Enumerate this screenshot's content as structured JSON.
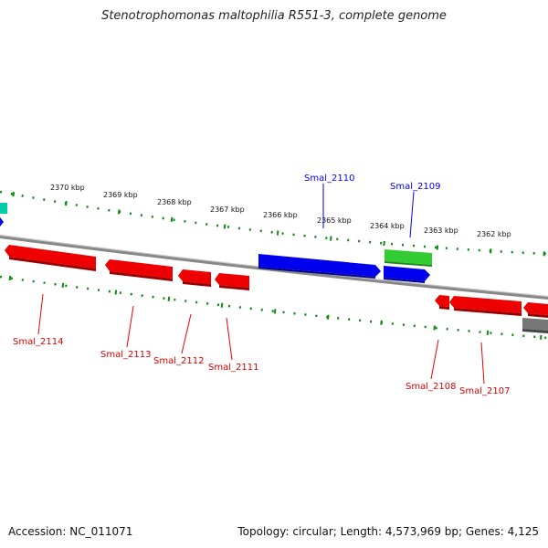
{
  "title": "Stenotrophomonas maltophilia R551-3, complete genome",
  "footer": {
    "accession": "Accession: NC_011071",
    "stats": "Topology: circular; Length: 4,573,969 bp; Genes: 4,125"
  },
  "colors": {
    "plus_gene": "#0000ee",
    "minus_gene": "#ee0000",
    "other_gene": "#33cc33",
    "teal_gene": "#00ccaa",
    "gray_gene": "#777777",
    "ruler_tick": "#118811",
    "backbone": "#888888"
  },
  "ruler_labels": [
    "2370 kbp",
    "2369 kbp",
    "2368 kbp",
    "2367 kbp",
    "2366 kbp",
    "2365 kbp",
    "2364 kbp",
    "2363 kbp",
    "2362 kbp"
  ],
  "gene_labels": {
    "top": [
      "Smal_2110",
      "Smal_2109"
    ],
    "bottom": [
      "Smal_2114",
      "Smal_2113",
      "Smal_2112",
      "Smal_2111",
      "Smal_2108",
      "Smal_2107"
    ]
  }
}
